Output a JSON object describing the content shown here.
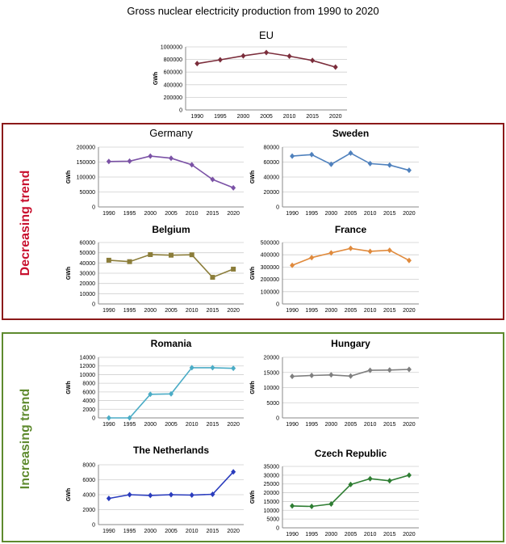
{
  "page": {
    "title": "Gross nuclear electricity production from 1990 to 2020",
    "decreasing_label": "Decreasing  trend",
    "increasing_label": "Increasing  trend"
  },
  "chart_data": [
    {
      "id": "eu",
      "type": "line",
      "title": "EU",
      "title_bold": false,
      "ylabel": "GWh",
      "color": "#7b2d3b",
      "x": [
        1990,
        1995,
        2000,
        2005,
        2010,
        2015,
        2020
      ],
      "values": [
        735000,
        795000,
        858000,
        910000,
        852000,
        785000,
        680000
      ],
      "yticks": [
        0,
        200000,
        400000,
        600000,
        800000,
        1000000
      ],
      "ylim": [
        0,
        1000000
      ],
      "marker": "diamond"
    },
    {
      "id": "germany",
      "type": "line",
      "title": "Germany",
      "title_bold": false,
      "ylabel": "GWh",
      "color": "#7b52a6",
      "x": [
        1990,
        1995,
        2000,
        2005,
        2010,
        2015,
        2020
      ],
      "values": [
        152000,
        153000,
        170000,
        163000,
        141000,
        92000,
        64000
      ],
      "yticks": [
        0,
        50000,
        100000,
        150000,
        200000
      ],
      "ylim": [
        0,
        200000
      ],
      "marker": "diamond"
    },
    {
      "id": "sweden",
      "type": "line",
      "title": "Sweden",
      "title_bold": true,
      "ylabel": "GWh",
      "color": "#4f81bd",
      "x": [
        1990,
        1995,
        2000,
        2005,
        2010,
        2015,
        2020
      ],
      "values": [
        68000,
        70000,
        57000,
        72000,
        58000,
        56000,
        49000
      ],
      "yticks": [
        0,
        20000,
        40000,
        60000,
        80000
      ],
      "ylim": [
        0,
        80000
      ],
      "marker": "diamond"
    },
    {
      "id": "belgium",
      "type": "line",
      "title": "Belgium",
      "title_bold": true,
      "ylabel": "GWh",
      "color": "#8b7d3a",
      "x": [
        1990,
        1995,
        2000,
        2005,
        2010,
        2015,
        2020
      ],
      "values": [
        42700,
        41300,
        48200,
        47600,
        48000,
        26000,
        34000
      ],
      "yticks": [
        0,
        10000,
        20000,
        30000,
        40000,
        50000,
        60000
      ],
      "ylim": [
        0,
        60000
      ],
      "marker": "square"
    },
    {
      "id": "france",
      "type": "line",
      "title": "France",
      "title_bold": true,
      "ylabel": "GWh",
      "color": "#e08a3c",
      "x": [
        1990,
        1995,
        2000,
        2005,
        2010,
        2015,
        2020
      ],
      "values": [
        314000,
        377000,
        415000,
        452000,
        428000,
        437000,
        354000
      ],
      "yticks": [
        0,
        100000,
        200000,
        300000,
        400000,
        500000
      ],
      "ylim": [
        0,
        500000
      ],
      "marker": "diamond"
    },
    {
      "id": "romania",
      "type": "line",
      "title": "Romania",
      "title_bold": true,
      "ylabel": "GWh",
      "color": "#4bacc6",
      "x": [
        1990,
        1995,
        2000,
        2005,
        2010,
        2015,
        2020
      ],
      "values": [
        0,
        0,
        5450,
        5550,
        11600,
        11600,
        11450
      ],
      "yticks": [
        0,
        2000,
        4000,
        6000,
        8000,
        10000,
        12000,
        14000
      ],
      "ylim": [
        0,
        14000
      ],
      "marker": "diamond"
    },
    {
      "id": "hungary",
      "type": "line",
      "title": "Hungary",
      "title_bold": true,
      "ylabel": "GWh",
      "color": "#7f7f7f",
      "x": [
        1990,
        1995,
        2000,
        2005,
        2010,
        2015,
        2020
      ],
      "values": [
        13700,
        14000,
        14200,
        13800,
        15700,
        15800,
        16000
      ],
      "yticks": [
        0,
        5000,
        10000,
        15000,
        20000
      ],
      "ylim": [
        0,
        20000
      ],
      "marker": "diamond"
    },
    {
      "id": "netherlands",
      "type": "line",
      "title": "The Netherlands",
      "title_bold": true,
      "ylabel": "GWh",
      "color": "#2a3cbd",
      "x": [
        1990,
        1995,
        2000,
        2005,
        2010,
        2015,
        2020
      ],
      "values": [
        3500,
        4000,
        3900,
        4000,
        3950,
        4050,
        7050
      ],
      "yticks": [
        0,
        2000,
        4000,
        6000,
        8000
      ],
      "ylim": [
        0,
        8000
      ],
      "marker": "diamond"
    },
    {
      "id": "czech",
      "type": "line",
      "title": "Czech Republic",
      "title_bold": true,
      "ylabel": "GWh",
      "color": "#2e7d32",
      "x": [
        1990,
        1995,
        2000,
        2005,
        2010,
        2015,
        2020
      ],
      "values": [
        12500,
        12200,
        13600,
        24700,
        28000,
        26800,
        30000
      ],
      "yticks": [
        0,
        5000,
        10000,
        15000,
        20000,
        25000,
        30000,
        35000
      ],
      "ylim": [
        0,
        35000
      ],
      "marker": "diamond"
    }
  ]
}
